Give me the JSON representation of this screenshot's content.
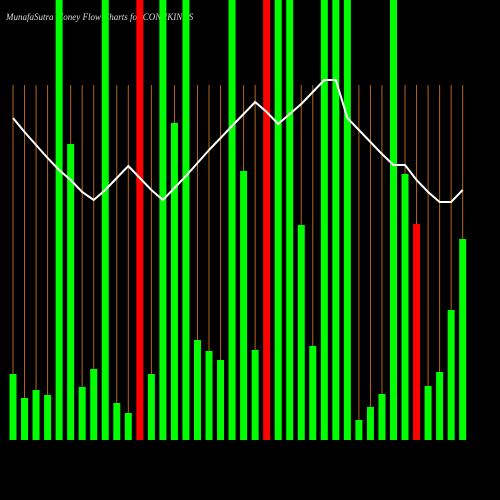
{
  "chart_data": {
    "type": "bar",
    "title": "MunafaSutra Money Flow Charts for CONNKINGS",
    "ylim": [
      0,
      440
    ],
    "series": [
      {
        "name": "Money Flow",
        "type": "bar",
        "values": [
          66,
          42,
          50,
          45,
          440,
          296,
          53,
          71,
          440,
          37,
          27,
          440,
          66,
          440,
          317,
          440,
          100,
          89,
          80,
          440,
          269,
          90,
          440,
          440,
          440,
          215,
          94,
          440,
          440,
          440,
          20,
          33,
          46,
          440,
          266,
          216,
          54,
          68,
          130,
          201
        ],
        "colors": [
          "#00ff00",
          "#00ff00",
          "#00ff00",
          "#00ff00",
          "#00ff00",
          "#00ff00",
          "#00ff00",
          "#00ff00",
          "#00ff00",
          "#00ff00",
          "#00ff00",
          "#ff0000",
          "#00ff00",
          "#00ff00",
          "#00ff00",
          "#00ff00",
          "#00ff00",
          "#00ff00",
          "#00ff00",
          "#00ff00",
          "#00ff00",
          "#00ff00",
          "#ff0000",
          "#00ff00",
          "#00ff00",
          "#00ff00",
          "#00ff00",
          "#00ff00",
          "#00ff00",
          "#00ff00",
          "#00ff00",
          "#00ff00",
          "#00ff00",
          "#00ff00",
          "#00ff00",
          "#ff0000",
          "#00ff00",
          "#00ff00",
          "#00ff00",
          "#00ff00"
        ]
      },
      {
        "name": "Trend",
        "type": "line",
        "color": "#ffffff",
        "values": [
          322,
          308,
          295,
          282,
          270,
          260,
          248,
          240,
          250,
          262,
          274,
          262,
          250,
          240,
          252,
          264,
          277,
          290,
          302,
          314,
          326,
          338,
          328,
          316,
          326,
          336,
          348,
          360,
          360,
          322,
          310,
          298,
          286,
          275,
          275,
          260,
          248,
          238,
          238,
          250
        ]
      }
    ]
  }
}
